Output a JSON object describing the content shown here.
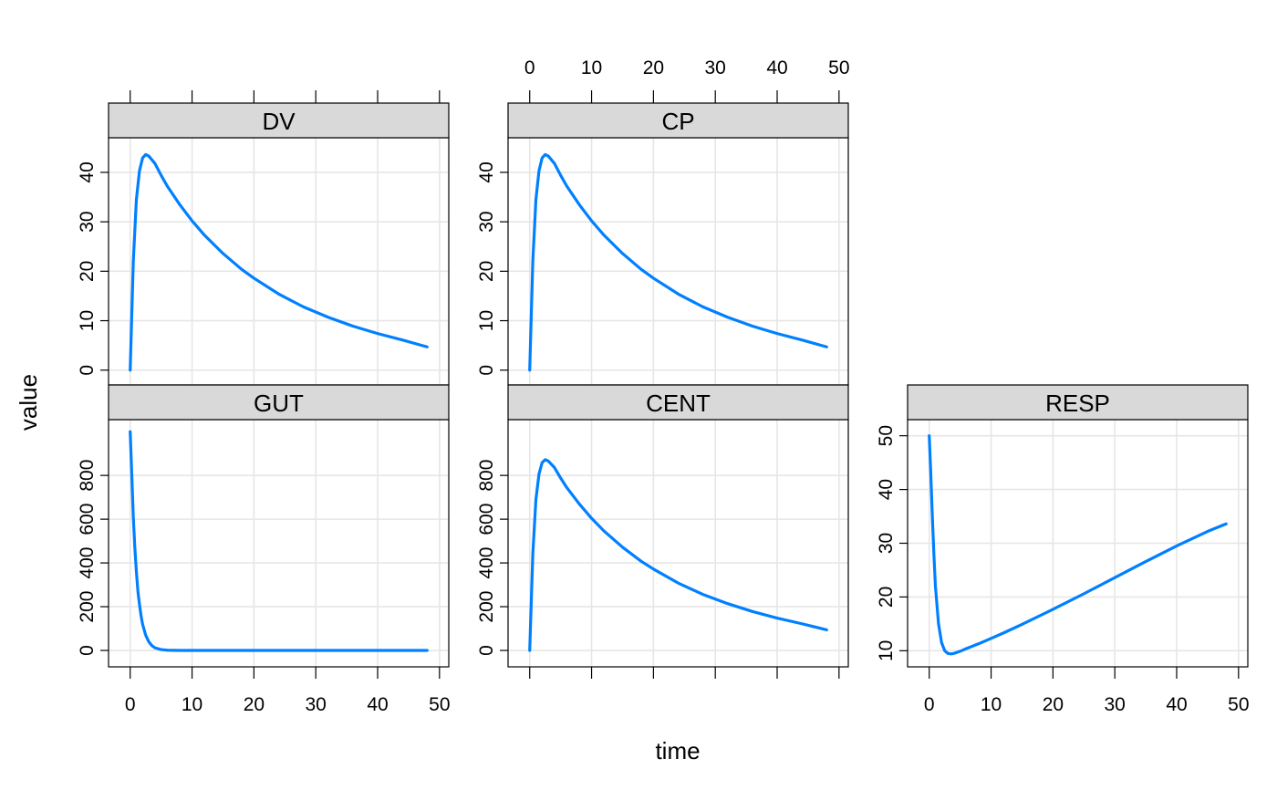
{
  "chart_data": {
    "type": "line",
    "layout": "lattice-panels",
    "xlabel": "time",
    "ylabel": "value",
    "xlim": [
      -3.5,
      51.5
    ],
    "x_ticks": [
      0,
      10,
      20,
      30,
      40,
      50
    ],
    "grid": true,
    "line_color": "#0080ff",
    "strip_color": "#d9d9d9",
    "panels": [
      {
        "name": "DV",
        "ylim": [
          -3,
          47
        ],
        "y_ticks": [
          0,
          10,
          20,
          30,
          40
        ],
        "x": [
          0,
          0.5,
          1,
          1.5,
          2,
          2.5,
          3,
          4,
          5,
          6,
          8,
          10,
          12,
          15,
          18,
          20,
          24,
          28,
          32,
          36,
          40,
          44,
          48
        ],
        "values": [
          0,
          22.0,
          34.5,
          40.3,
          42.9,
          43.6,
          43.3,
          41.8,
          39.4,
          37.2,
          33.5,
          30.2,
          27.3,
          23.6,
          20.4,
          18.6,
          15.4,
          12.8,
          10.7,
          8.9,
          7.4,
          6.1,
          4.7
        ]
      },
      {
        "name": "CP",
        "ylim": [
          -3,
          47
        ],
        "y_ticks": [
          0,
          10,
          20,
          30,
          40
        ],
        "x": [
          0,
          0.5,
          1,
          1.5,
          2,
          2.5,
          3,
          4,
          5,
          6,
          8,
          10,
          12,
          15,
          18,
          20,
          24,
          28,
          32,
          36,
          40,
          44,
          48
        ],
        "values": [
          0,
          22.0,
          34.5,
          40.3,
          42.9,
          43.6,
          43.3,
          41.8,
          39.4,
          37.2,
          33.5,
          30.2,
          27.3,
          23.6,
          20.4,
          18.6,
          15.4,
          12.8,
          10.7,
          8.9,
          7.4,
          6.1,
          4.7
        ]
      },
      {
        "name": "GUT",
        "ylim": [
          -75,
          1055
        ],
        "y_ticks": [
          0,
          200,
          400,
          600,
          800
        ],
        "x": [
          0,
          0.25,
          0.5,
          0.75,
          1,
          1.25,
          1.5,
          1.75,
          2,
          2.5,
          3,
          3.5,
          4,
          5,
          6,
          8,
          48
        ],
        "values": [
          1000,
          810,
          610,
          470,
          360,
          270,
          210,
          160,
          120,
          70,
          40,
          22,
          12,
          4,
          1,
          0,
          0
        ]
      },
      {
        "name": "CENT",
        "ylim": [
          -75,
          1055
        ],
        "y_ticks": [
          0,
          200,
          400,
          600,
          800
        ],
        "x": [
          0,
          0.5,
          1,
          1.5,
          2,
          2.5,
          3,
          4,
          5,
          6,
          8,
          10,
          12,
          15,
          18,
          20,
          24,
          28,
          32,
          36,
          40,
          44,
          48
        ],
        "values": [
          0,
          440,
          690,
          806,
          858,
          872,
          866,
          836,
          788,
          744,
          670,
          604,
          546,
          472,
          408,
          372,
          308,
          256,
          214,
          178,
          148,
          122,
          94
        ]
      },
      {
        "name": "RESP",
        "ylim": [
          7,
          53
        ],
        "y_ticks": [
          10,
          20,
          30,
          40,
          50
        ],
        "x": [
          0,
          0.25,
          0.5,
          0.75,
          1,
          1.5,
          2,
          2.5,
          3,
          3.5,
          4,
          5,
          6,
          8,
          10,
          12,
          15,
          20,
          25,
          30,
          35,
          40,
          45,
          48
        ],
        "values": [
          50,
          43,
          35,
          28,
          22,
          15,
          11.5,
          10,
          9.5,
          9.4,
          9.5,
          9.9,
          10.4,
          11.3,
          12.3,
          13.3,
          14.9,
          17.7,
          20.6,
          23.6,
          26.6,
          29.5,
          32.2,
          33.6
        ]
      }
    ]
  }
}
